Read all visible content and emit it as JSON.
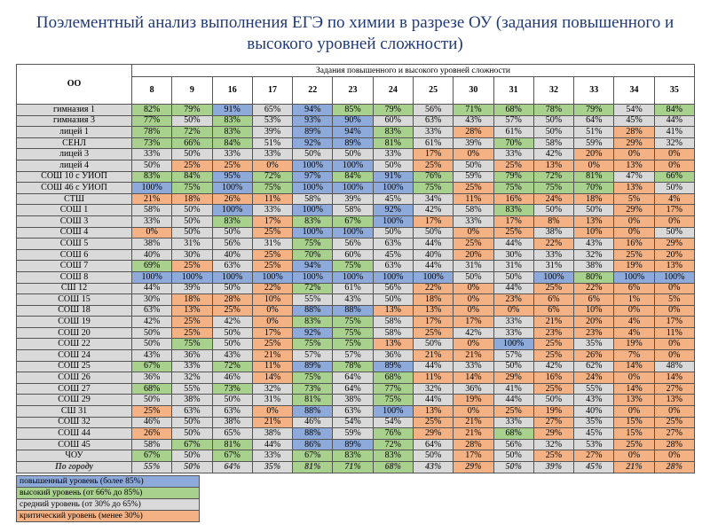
{
  "title": "Поэлементный анализ выполнения ЕГЭ по химии в разрезе ОУ (задания повышенного и высокого уровней сложности)",
  "table": {
    "corner": "ОО",
    "group_header": "Задания повышенного и высокого уровней сложности",
    "columns": [
      "8",
      "9",
      "16",
      "17",
      "22",
      "23",
      "24",
      "25",
      "30",
      "31",
      "32",
      "33",
      "34",
      "35"
    ],
    "rows": [
      {
        "name": "гимназия 1",
        "cells": [
          "82%",
          "79%",
          "91%",
          "65%",
          "94%",
          "85%",
          "79%",
          "56%",
          "71%",
          "68%",
          "78%",
          "79%",
          "54%",
          "84%"
        ]
      },
      {
        "name": "гимназия 3",
        "cells": [
          "77%",
          "50%",
          "83%",
          "53%",
          "93%",
          "90%",
          "60%",
          "63%",
          "43%",
          "57%",
          "50%",
          "64%",
          "45%",
          "44%"
        ]
      },
      {
        "name": "лицей 1",
        "cells": [
          "78%",
          "72%",
          "83%",
          "39%",
          "89%",
          "94%",
          "83%",
          "33%",
          "28%",
          "61%",
          "50%",
          "51%",
          "28%",
          "41%"
        ]
      },
      {
        "name": "СЕНЛ",
        "cells": [
          "73%",
          "66%",
          "84%",
          "51%",
          "92%",
          "89%",
          "81%",
          "61%",
          "39%",
          "70%",
          "58%",
          "59%",
          "29%",
          "32%"
        ]
      },
      {
        "name": "лицей 3",
        "cells": [
          "33%",
          "50%",
          "33%",
          "33%",
          "50%",
          "50%",
          "33%",
          "17%",
          "0%",
          "33%",
          "42%",
          "20%",
          "0%",
          "0%"
        ]
      },
      {
        "name": "лицей 4",
        "cells": [
          "50%",
          "25%",
          "25%",
          "0%",
          "100%",
          "100%",
          "50%",
          "25%",
          "50%",
          "25%",
          "13%",
          "0%",
          "13%",
          "0%"
        ]
      },
      {
        "name": "СОШ 10 с УИОП",
        "cells": [
          "83%",
          "84%",
          "95%",
          "72%",
          "97%",
          "84%",
          "91%",
          "76%",
          "59%",
          "79%",
          "72%",
          "81%",
          "47%",
          "66%"
        ]
      },
      {
        "name": "СОШ 46 с УИОП",
        "cells": [
          "100%",
          "75%",
          "100%",
          "75%",
          "100%",
          "100%",
          "100%",
          "75%",
          "25%",
          "75%",
          "75%",
          "70%",
          "13%",
          "50%"
        ]
      },
      {
        "name": "СТШ",
        "cells": [
          "21%",
          "18%",
          "26%",
          "11%",
          "58%",
          "39%",
          "45%",
          "34%",
          "11%",
          "16%",
          "24%",
          "18%",
          "5%",
          "4%"
        ]
      },
      {
        "name": "СОШ 1",
        "cells": [
          "58%",
          "50%",
          "100%",
          "33%",
          "100%",
          "58%",
          "92%",
          "42%",
          "58%",
          "83%",
          "50%",
          "50%",
          "29%",
          "17%"
        ]
      },
      {
        "name": "СОШ 3",
        "cells": [
          "33%",
          "50%",
          "83%",
          "17%",
          "83%",
          "67%",
          "100%",
          "17%",
          "33%",
          "17%",
          "8%",
          "13%",
          "0%",
          "0%"
        ]
      },
      {
        "name": "СОШ 4",
        "cells": [
          "0%",
          "50%",
          "50%",
          "25%",
          "100%",
          "100%",
          "50%",
          "50%",
          "0%",
          "25%",
          "38%",
          "10%",
          "0%",
          "50%"
        ]
      },
      {
        "name": "СОШ 5",
        "cells": [
          "38%",
          "31%",
          "56%",
          "31%",
          "75%",
          "56%",
          "63%",
          "44%",
          "25%",
          "44%",
          "22%",
          "43%",
          "16%",
          "29%"
        ]
      },
      {
        "name": "СОШ 6",
        "cells": [
          "40%",
          "30%",
          "40%",
          "25%",
          "70%",
          "60%",
          "45%",
          "40%",
          "20%",
          "30%",
          "33%",
          "32%",
          "25%",
          "20%"
        ]
      },
      {
        "name": "СОШ 7",
        "cells": [
          "69%",
          "25%",
          "63%",
          "25%",
          "94%",
          "75%",
          "63%",
          "44%",
          "31%",
          "31%",
          "31%",
          "38%",
          "19%",
          "13%"
        ]
      },
      {
        "name": "СОШ 8",
        "cells": [
          "100%",
          "100%",
          "100%",
          "100%",
          "100%",
          "100%",
          "100%",
          "100%",
          "50%",
          "50%",
          "100%",
          "80%",
          "100%",
          "100%"
        ]
      },
      {
        "name": "СШ 12",
        "cells": [
          "44%",
          "39%",
          "50%",
          "22%",
          "72%",
          "61%",
          "56%",
          "22%",
          "0%",
          "44%",
          "25%",
          "22%",
          "6%",
          "0%"
        ]
      },
      {
        "name": "СОШ 15",
        "cells": [
          "30%",
          "18%",
          "28%",
          "10%",
          "55%",
          "43%",
          "50%",
          "18%",
          "0%",
          "23%",
          "6%",
          "6%",
          "1%",
          "5%"
        ]
      },
      {
        "name": "СОШ 18",
        "cells": [
          "63%",
          "13%",
          "25%",
          "0%",
          "88%",
          "88%",
          "13%",
          "13%",
          "0%",
          "0%",
          "6%",
          "10%",
          "0%",
          "0%"
        ]
      },
      {
        "name": "СОШ 19",
        "cells": [
          "42%",
          "25%",
          "42%",
          "0%",
          "83%",
          "75%",
          "58%",
          "17%",
          "17%",
          "33%",
          "21%",
          "20%",
          "4%",
          "17%"
        ]
      },
      {
        "name": "СОШ 20",
        "cells": [
          "50%",
          "25%",
          "50%",
          "17%",
          "92%",
          "75%",
          "58%",
          "25%",
          "42%",
          "33%",
          "23%",
          "23%",
          "4%",
          "11%"
        ]
      },
      {
        "name": "СОШ 22",
        "cells": [
          "50%",
          "75%",
          "50%",
          "25%",
          "75%",
          "75%",
          "13%",
          "50%",
          "0%",
          "100%",
          "25%",
          "35%",
          "19%",
          "0%"
        ]
      },
      {
        "name": "СОШ 24",
        "cells": [
          "43%",
          "36%",
          "43%",
          "21%",
          "57%",
          "57%",
          "36%",
          "21%",
          "21%",
          "57%",
          "25%",
          "26%",
          "7%",
          "0%"
        ]
      },
      {
        "name": "СОШ 25",
        "cells": [
          "67%",
          "33%",
          "72%",
          "11%",
          "89%",
          "78%",
          "89%",
          "44%",
          "33%",
          "50%",
          "42%",
          "62%",
          "14%",
          "48%"
        ]
      },
      {
        "name": "СОШ 26",
        "cells": [
          "36%",
          "32%",
          "46%",
          "14%",
          "75%",
          "64%",
          "68%",
          "11%",
          "14%",
          "29%",
          "16%",
          "24%",
          "0%",
          "14%"
        ]
      },
      {
        "name": "СОШ 27",
        "cells": [
          "68%",
          "55%",
          "73%",
          "32%",
          "73%",
          "64%",
          "77%",
          "32%",
          "36%",
          "41%",
          "25%",
          "55%",
          "14%",
          "27%"
        ]
      },
      {
        "name": "СОШ 29",
        "cells": [
          "50%",
          "38%",
          "50%",
          "31%",
          "81%",
          "38%",
          "75%",
          "44%",
          "19%",
          "44%",
          "50%",
          "43%",
          "13%",
          "13%"
        ]
      },
      {
        "name": "СШ 31",
        "cells": [
          "25%",
          "63%",
          "63%",
          "0%",
          "88%",
          "63%",
          "100%",
          "13%",
          "0%",
          "25%",
          "19%",
          "40%",
          "0%",
          "0%"
        ]
      },
      {
        "name": "СОШ 32",
        "cells": [
          "46%",
          "50%",
          "38%",
          "21%",
          "46%",
          "54%",
          "54%",
          "25%",
          "21%",
          "33%",
          "27%",
          "35%",
          "15%",
          "25%"
        ]
      },
      {
        "name": "СОШ 44",
        "cells": [
          "26%",
          "50%",
          "65%",
          "38%",
          "88%",
          "59%",
          "76%",
          "29%",
          "21%",
          "68%",
          "29%",
          "45%",
          "15%",
          "27%"
        ]
      },
      {
        "name": "СОШ 45",
        "cells": [
          "58%",
          "67%",
          "81%",
          "44%",
          "86%",
          "89%",
          "72%",
          "64%",
          "28%",
          "56%",
          "32%",
          "53%",
          "25%",
          "28%"
        ]
      },
      {
        "name": "ЧОУ",
        "cells": [
          "67%",
          "50%",
          "67%",
          "33%",
          "67%",
          "83%",
          "83%",
          "50%",
          "17%",
          "50%",
          "25%",
          "27%",
          "0%",
          "0%"
        ]
      }
    ],
    "total": {
      "name": "По городу",
      "cells": [
        "55%",
        "50%",
        "64%",
        "35%",
        "81%",
        "71%",
        "68%",
        "43%",
        "29%",
        "50%",
        "39%",
        "45%",
        "21%",
        "28%"
      ]
    }
  },
  "legend": [
    {
      "label": "повышенный уровень (более 85%)",
      "color": "#8eaadb",
      "min": 85,
      "strict": true
    },
    {
      "label": "высокий уровень (от 66% до 85%)",
      "color": "#a9d18e",
      "min": 66
    },
    {
      "label": "средний уровень (от 30% до 65%)",
      "color": "#d9d9d9",
      "min": 30
    },
    {
      "label": "критический уровень (менее 30%)",
      "color": "#f4b183",
      "min": 0
    }
  ]
}
